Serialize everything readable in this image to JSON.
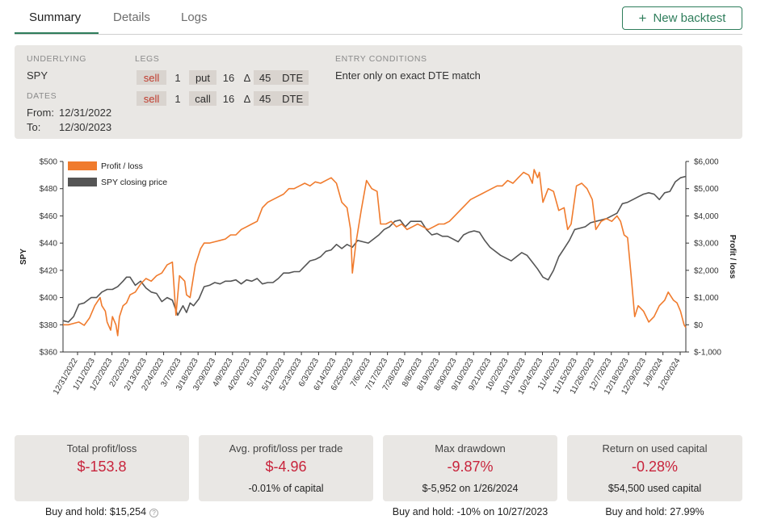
{
  "tabs": [
    {
      "label": "Summary",
      "active": true
    },
    {
      "label": "Details",
      "active": false
    },
    {
      "label": "Logs",
      "active": false
    }
  ],
  "new_backtest_label": "New backtest",
  "config": {
    "underlying_label": "UNDERLYING",
    "underlying": "SPY",
    "dates_label": "DATES",
    "from_label": "From:",
    "from": "12/31/2022",
    "to_label": "To:",
    "to": "12/30/2023",
    "legs_label": "LEGS",
    "legs": [
      {
        "action": "sell",
        "qty": "1",
        "type": "put",
        "delta": "16",
        "delta_symbol": "Δ",
        "dte": "45",
        "dte_label": "DTE"
      },
      {
        "action": "sell",
        "qty": "1",
        "type": "call",
        "delta": "16",
        "delta_symbol": "Δ",
        "dte": "45",
        "dte_label": "DTE"
      }
    ],
    "entry_label": "ENTRY CONDITIONS",
    "entry": "Enter only on exact DTE match"
  },
  "chart_data": {
    "type": "line",
    "legend": [
      "Profit / loss",
      "SPY closing price"
    ],
    "legend_position": "top-left",
    "ylabel_left": "SPY",
    "ylabel_right": "Profit / loss",
    "left_ticks": [
      "$500",
      "$480",
      "$460",
      "$440",
      "$420",
      "$400",
      "$380",
      "$360"
    ],
    "right_ticks": [
      "$6,000",
      "$5,000",
      "$4,000",
      "$3,000",
      "$2,000",
      "$1,000",
      "$0",
      "$-1,000"
    ],
    "ylim_left": [
      360,
      500
    ],
    "ylim_right": [
      -1000,
      6000
    ],
    "x_ticks": [
      "12/31/2022",
      "1/11/2023",
      "1/22/2023",
      "2/2/2023",
      "2/13/2023",
      "2/24/2023",
      "3/7/2023",
      "3/18/2023",
      "3/29/2023",
      "4/9/2023",
      "4/20/2023",
      "5/1/2023",
      "5/12/2023",
      "5/23/2023",
      "6/3/2023",
      "6/14/2023",
      "6/25/2023",
      "7/6/2023",
      "7/17/2023",
      "7/28/2023",
      "8/8/2023",
      "8/19/2023",
      "8/30/2023",
      "9/10/2023",
      "9/21/2023",
      "10/2/2023",
      "10/13/2023",
      "10/24/2023",
      "11/4/2023",
      "11/15/2023",
      "11/26/2023",
      "12/7/2023",
      "12/18/2023",
      "12/29/2023",
      "1/9/2024",
      "1/20/2024"
    ],
    "series": [
      {
        "name": "SPY closing price",
        "color": "#555555",
        "axis": "left",
        "points": [
          [
            0,
            383
          ],
          [
            3,
            382
          ],
          [
            6,
            386
          ],
          [
            9,
            395
          ],
          [
            12,
            396
          ],
          [
            16,
            400
          ],
          [
            19,
            400
          ],
          [
            22,
            404
          ],
          [
            25,
            406
          ],
          [
            28,
            406
          ],
          [
            31,
            408
          ],
          [
            34,
            412
          ],
          [
            36,
            415
          ],
          [
            38,
            415
          ],
          [
            41,
            409
          ],
          [
            44,
            412
          ],
          [
            47,
            407
          ],
          [
            50,
            404
          ],
          [
            53,
            403
          ],
          [
            56,
            397
          ],
          [
            59,
            400
          ],
          [
            62,
            398
          ],
          [
            65,
            387
          ],
          [
            68,
            394
          ],
          [
            70,
            389
          ],
          [
            72,
            396
          ],
          [
            74,
            394
          ],
          [
            77,
            399
          ],
          [
            80,
            408
          ],
          [
            83,
            409
          ],
          [
            86,
            411
          ],
          [
            89,
            410
          ],
          [
            92,
            412
          ],
          [
            95,
            412
          ],
          [
            98,
            413
          ],
          [
            101,
            410
          ],
          [
            104,
            413
          ],
          [
            107,
            412
          ],
          [
            110,
            414
          ],
          [
            113,
            410
          ],
          [
            116,
            411
          ],
          [
            119,
            411
          ],
          [
            122,
            414
          ],
          [
            125,
            418
          ],
          [
            128,
            418
          ],
          [
            131,
            419
          ],
          [
            134,
            419
          ],
          [
            137,
            423
          ],
          [
            140,
            427
          ],
          [
            143,
            428
          ],
          [
            146,
            430
          ],
          [
            149,
            434
          ],
          [
            152,
            435
          ],
          [
            155,
            439
          ],
          [
            158,
            436
          ],
          [
            161,
            439
          ],
          [
            164,
            437
          ],
          [
            167,
            442
          ],
          [
            170,
            441
          ],
          [
            173,
            440
          ],
          [
            176,
            443
          ],
          [
            179,
            446
          ],
          [
            182,
            450
          ],
          [
            185,
            452
          ],
          [
            188,
            456
          ],
          [
            191,
            457
          ],
          [
            194,
            452
          ],
          [
            197,
            456
          ],
          [
            200,
            456
          ],
          [
            203,
            456
          ],
          [
            206,
            450
          ],
          [
            209,
            446
          ],
          [
            212,
            447
          ],
          [
            215,
            445
          ],
          [
            218,
            445
          ],
          [
            221,
            443
          ],
          [
            224,
            441
          ],
          [
            227,
            446
          ],
          [
            230,
            448
          ],
          [
            233,
            449
          ],
          [
            236,
            448
          ],
          [
            239,
            442
          ],
          [
            242,
            437
          ],
          [
            245,
            434
          ],
          [
            248,
            431
          ],
          [
            251,
            429
          ],
          [
            254,
            427
          ],
          [
            257,
            430
          ],
          [
            260,
            433
          ],
          [
            263,
            431
          ],
          [
            266,
            426
          ],
          [
            269,
            421
          ],
          [
            272,
            415
          ],
          [
            275,
            413
          ],
          [
            278,
            420
          ],
          [
            281,
            430
          ],
          [
            284,
            436
          ],
          [
            287,
            442
          ],
          [
            290,
            450
          ],
          [
            293,
            451
          ],
          [
            296,
            452
          ],
          [
            299,
            455
          ],
          [
            302,
            456
          ],
          [
            305,
            457
          ],
          [
            308,
            458
          ],
          [
            311,
            460
          ],
          [
            314,
            462
          ],
          [
            317,
            469
          ],
          [
            320,
            470
          ],
          [
            323,
            472
          ],
          [
            326,
            474
          ],
          [
            329,
            476
          ],
          [
            332,
            477
          ],
          [
            335,
            476
          ],
          [
            338,
            472
          ],
          [
            341,
            477
          ],
          [
            344,
            478
          ],
          [
            347,
            485
          ],
          [
            350,
            488
          ],
          [
            353,
            489
          ]
        ]
      },
      {
        "name": "Profit / loss",
        "color": "#f07b2d",
        "axis": "right",
        "points": [
          [
            0,
            0
          ],
          [
            3,
            0
          ],
          [
            6,
            50
          ],
          [
            9,
            100
          ],
          [
            12,
            -20
          ],
          [
            15,
            250
          ],
          [
            18,
            700
          ],
          [
            21,
            1000
          ],
          [
            22,
            700
          ],
          [
            24,
            500
          ],
          [
            25,
            100
          ],
          [
            27,
            -200
          ],
          [
            28,
            300
          ],
          [
            30,
            0
          ],
          [
            31,
            -400
          ],
          [
            32,
            300
          ],
          [
            34,
            700
          ],
          [
            36,
            800
          ],
          [
            38,
            1100
          ],
          [
            41,
            1200
          ],
          [
            44,
            1500
          ],
          [
            47,
            1700
          ],
          [
            50,
            1600
          ],
          [
            53,
            1800
          ],
          [
            56,
            1900
          ],
          [
            59,
            2200
          ],
          [
            62,
            2300
          ],
          [
            64,
            350
          ],
          [
            66,
            1800
          ],
          [
            69,
            1600
          ],
          [
            70,
            1100
          ],
          [
            72,
            1000
          ],
          [
            75,
            2200
          ],
          [
            78,
            2800
          ],
          [
            80,
            3000
          ],
          [
            83,
            3000
          ],
          [
            86,
            3050
          ],
          [
            89,
            3100
          ],
          [
            92,
            3150
          ],
          [
            95,
            3300
          ],
          [
            98,
            3300
          ],
          [
            101,
            3500
          ],
          [
            104,
            3600
          ],
          [
            107,
            3700
          ],
          [
            110,
            3800
          ],
          [
            113,
            4300
          ],
          [
            116,
            4500
          ],
          [
            119,
            4600
          ],
          [
            122,
            4700
          ],
          [
            125,
            4800
          ],
          [
            128,
            5000
          ],
          [
            131,
            5000
          ],
          [
            134,
            5100
          ],
          [
            137,
            5200
          ],
          [
            140,
            5100
          ],
          [
            143,
            5250
          ],
          [
            146,
            5200
          ],
          [
            149,
            5300
          ],
          [
            152,
            5400
          ],
          [
            155,
            5200
          ],
          [
            158,
            4500
          ],
          [
            161,
            4300
          ],
          [
            163,
            3500
          ],
          [
            164,
            1900
          ],
          [
            166,
            3000
          ],
          [
            169,
            4200
          ],
          [
            172,
            5300
          ],
          [
            175,
            5000
          ],
          [
            178,
            4900
          ],
          [
            180,
            3700
          ],
          [
            183,
            3700
          ],
          [
            186,
            3800
          ],
          [
            189,
            3600
          ],
          [
            192,
            3700
          ],
          [
            195,
            3500
          ],
          [
            198,
            3600
          ],
          [
            201,
            3700
          ],
          [
            204,
            3600
          ],
          [
            207,
            3500
          ],
          [
            210,
            3600
          ],
          [
            213,
            3700
          ],
          [
            216,
            3700
          ],
          [
            219,
            3800
          ],
          [
            222,
            4000
          ],
          [
            225,
            4200
          ],
          [
            228,
            4400
          ],
          [
            231,
            4600
          ],
          [
            234,
            4700
          ],
          [
            237,
            4800
          ],
          [
            240,
            4900
          ],
          [
            243,
            5000
          ],
          [
            246,
            5100
          ],
          [
            249,
            5100
          ],
          [
            252,
            5300
          ],
          [
            255,
            5200
          ],
          [
            258,
            5400
          ],
          [
            261,
            5600
          ],
          [
            264,
            5500
          ],
          [
            266,
            5200
          ],
          [
            267,
            5700
          ],
          [
            269,
            5400
          ],
          [
            270,
            5600
          ],
          [
            272,
            4500
          ],
          [
            275,
            5000
          ],
          [
            278,
            4900
          ],
          [
            281,
            4200
          ],
          [
            284,
            4300
          ],
          [
            286,
            3500
          ],
          [
            288,
            3700
          ],
          [
            291,
            5100
          ],
          [
            294,
            5200
          ],
          [
            297,
            5000
          ],
          [
            300,
            4600
          ],
          [
            302,
            3500
          ],
          [
            305,
            3800
          ],
          [
            308,
            3900
          ],
          [
            311,
            3800
          ],
          [
            314,
            4000
          ],
          [
            316,
            3800
          ],
          [
            318,
            3300
          ],
          [
            320,
            3200
          ],
          [
            322,
            1800
          ],
          [
            324,
            300
          ],
          [
            326,
            700
          ],
          [
            329,
            500
          ],
          [
            332,
            100
          ],
          [
            335,
            300
          ],
          [
            338,
            700
          ],
          [
            341,
            900
          ],
          [
            343,
            1200
          ],
          [
            346,
            900
          ],
          [
            348,
            800
          ],
          [
            350,
            500
          ],
          [
            352,
            0
          ],
          [
            353,
            -100
          ]
        ]
      }
    ]
  },
  "stats": [
    {
      "title": "Total profit/loss",
      "value": "$-153.8",
      "sub": "",
      "below": "Buy and hold: $15,254",
      "help_icon": "?"
    },
    {
      "title": "Avg. profit/loss per trade",
      "value": "$-4.96",
      "sub": "-0.01% of capital",
      "below": ""
    },
    {
      "title": "Max drawdown",
      "value": "-9.87%",
      "sub": "$-5,952 on 1/26/2024",
      "below": "Buy and hold: -10% on 10/27/2023"
    },
    {
      "title": "Return on used capital",
      "value": "-0.28%",
      "sub": "$54,500 used capital",
      "below": "Buy and hold: 27.99%"
    }
  ]
}
